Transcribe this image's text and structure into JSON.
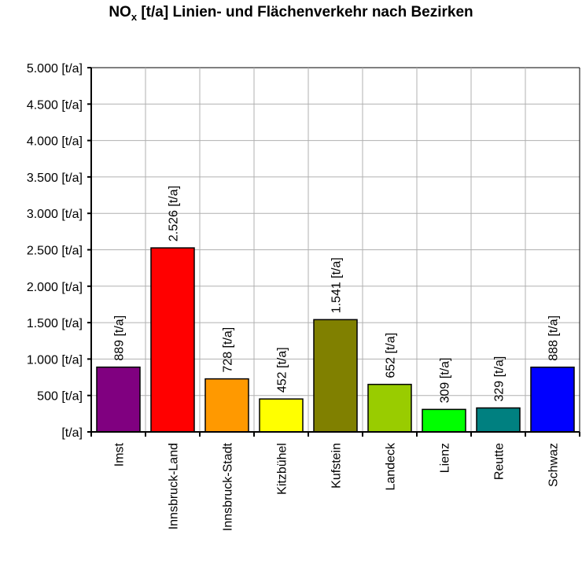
{
  "chart_data": {
    "type": "bar",
    "title": "NOx [t/a] Linien- und Flächenverkehr nach Bezirken",
    "title_main": "NO",
    "title_sub": "x",
    "title_rest": " [t/a] Linien- und Flächenverkehr nach Bezirken",
    "xlabel": "",
    "ylabel": "",
    "ylim": [
      0,
      5000
    ],
    "grid": true,
    "legend": "none",
    "y_ticks": [
      0,
      500,
      1000,
      1500,
      2000,
      2500,
      3000,
      3500,
      4000,
      4500,
      5000
    ],
    "y_tick_labels": [
      "[t/a]",
      "500 [t/a]",
      "1.000 [t/a]",
      "1.500 [t/a]",
      "2.000 [t/a]",
      "2.500 [t/a]",
      "3.000 [t/a]",
      "3.500 [t/a]",
      "4.000 [t/a]",
      "4.500 [t/a]",
      "5.000 [t/a]"
    ],
    "categories": [
      "Imst",
      "Innsbruck-Land",
      "Innsbruck-Stadt",
      "Kitzbühel",
      "Kufstein",
      "Landeck",
      "Lienz",
      "Reutte",
      "Schwaz"
    ],
    "values": [
      889,
      2526,
      728,
      452,
      1541,
      652,
      309,
      329,
      888
    ],
    "data_labels": [
      "889 [t/a]",
      "2.526 [t/a]",
      "728 [t/a]",
      "452 [t/a]",
      "1.541 [t/a]",
      "652 [t/a]",
      "309 [t/a]",
      "329 [t/a]",
      "888 [t/a]"
    ],
    "colors": [
      "#800080",
      "#ff0000",
      "#ff9900",
      "#ffff00",
      "#808000",
      "#99cc00",
      "#00ff00",
      "#008080",
      "#0000ff"
    ]
  }
}
